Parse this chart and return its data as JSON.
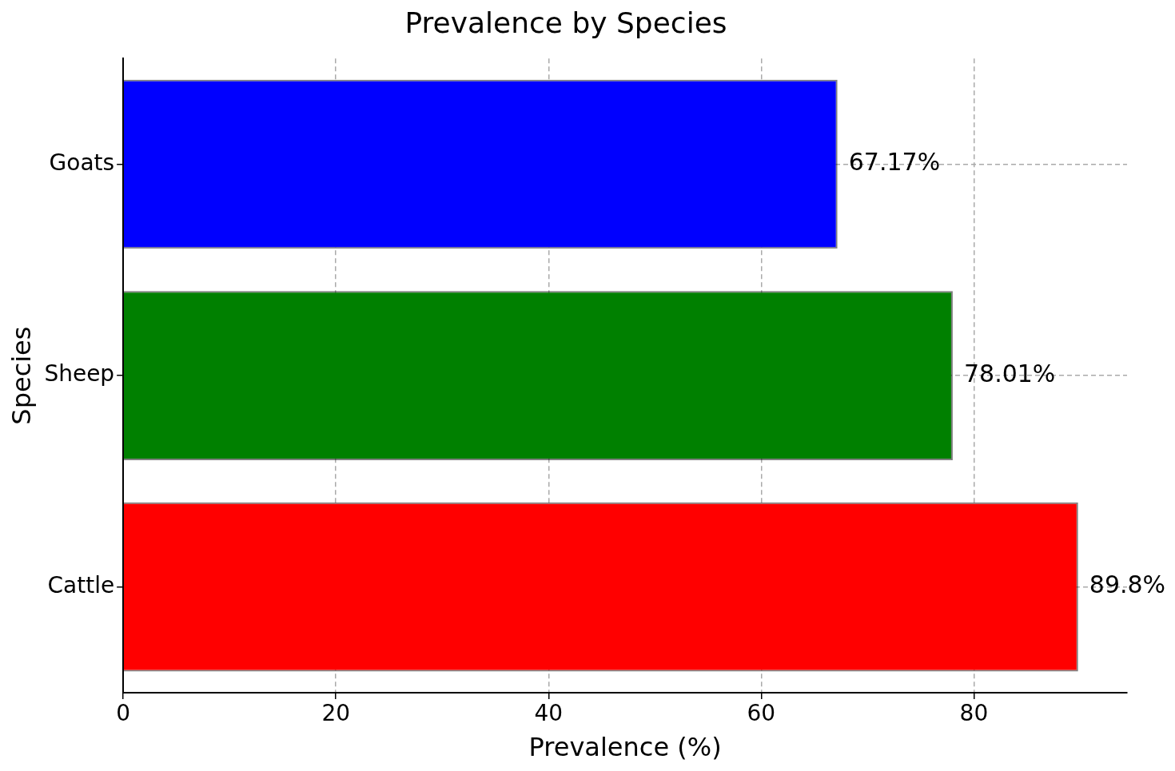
{
  "chart_data": {
    "type": "bar",
    "orientation": "horizontal",
    "title": "Prevalence by Species",
    "xlabel": "Prevalence (%)",
    "ylabel": "Species",
    "categories": [
      "Goats",
      "Sheep",
      "Cattle"
    ],
    "values": [
      67.17,
      78.01,
      89.8
    ],
    "colors": [
      "#0000ff",
      "#008000",
      "#ff0000"
    ],
    "value_labels": [
      "67.17%",
      "78.01%",
      "89.8%"
    ],
    "xlim": [
      0,
      94.4
    ],
    "xticks": [
      0,
      20,
      40,
      60,
      80
    ],
    "grid": true
  }
}
